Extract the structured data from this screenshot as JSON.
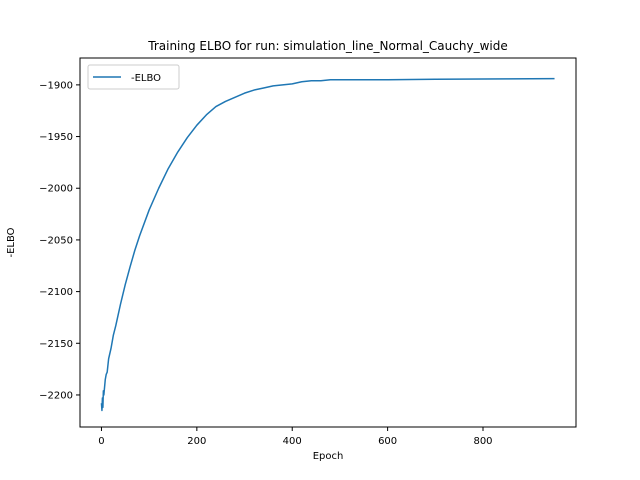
{
  "chart_data": {
    "type": "line",
    "title": "Training ELBO for run: simulation_line_Normal_Cauchy_wide",
    "xlabel": "Epoch",
    "ylabel": "-ELBO",
    "xlim": [
      -45,
      995
    ],
    "ylim": [
      -2231,
      -1874
    ],
    "xticks": [
      0,
      200,
      400,
      600,
      800
    ],
    "yticks": [
      -2200,
      -2150,
      -2100,
      -2050,
      -2000,
      -1950,
      -1900
    ],
    "grid": false,
    "legend": "upper-left",
    "series": [
      {
        "name": "-ELBO",
        "color": "#1f77b4",
        "x": [
          0,
          1,
          2,
          3,
          4,
          5,
          6,
          8,
          10,
          12,
          15,
          20,
          25,
          30,
          40,
          50,
          60,
          70,
          80,
          100,
          120,
          140,
          160,
          180,
          200,
          220,
          240,
          260,
          280,
          300,
          320,
          340,
          360,
          380,
          400,
          420,
          440,
          460,
          480,
          500,
          550,
          600,
          650,
          700,
          750,
          800,
          850,
          900,
          950
        ],
        "y": [
          -2208,
          -2215,
          -2203,
          -2212,
          -2196,
          -2200,
          -2195,
          -2185,
          -2180,
          -2178,
          -2165,
          -2155,
          -2142,
          -2133,
          -2112,
          -2093,
          -2076,
          -2060,
          -2046,
          -2021,
          -2000,
          -1981,
          -1965,
          -1951,
          -1939,
          -1929,
          -1921,
          -1916,
          -1912,
          -1908,
          -1905,
          -1903,
          -1901,
          -1900,
          -1899,
          -1897,
          -1896,
          -1896,
          -1895,
          -1895,
          -1895,
          -1895,
          -1894.8,
          -1894.6,
          -1894.4,
          -1894.3,
          -1894.2,
          -1894.1,
          -1894
        ]
      }
    ]
  }
}
